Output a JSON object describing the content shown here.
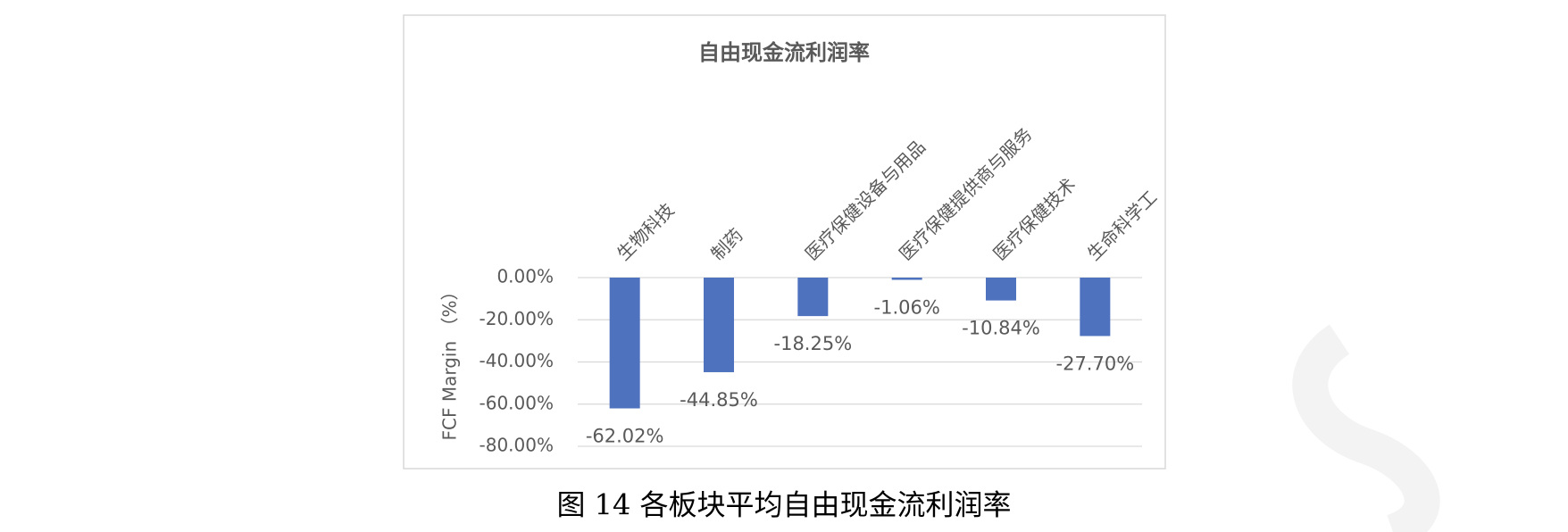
{
  "chart_data": {
    "type": "bar",
    "title": "自由现金流利润率",
    "y_label": "FCF Margin （%）",
    "categories": [
      "生物科技",
      "制药",
      "医疗保健设备与用品",
      "医疗保健提供商与服务",
      "医疗保健技术",
      "生命科学工"
    ],
    "values": [
      -62.02,
      -44.85,
      -18.25,
      -1.06,
      -10.84,
      -27.7
    ],
    "value_labels": [
      "-62.02%",
      "-44.85%",
      "-18.25%",
      "-1.06%",
      "-10.84%",
      "-27.70%"
    ],
    "color": "#4e72be",
    "ylim": [
      -80,
      0
    ],
    "yticks": [
      {
        "value": 0,
        "label": "0.00%"
      },
      {
        "value": -20,
        "label": "-20.00%"
      },
      {
        "value": -40,
        "label": "-40.00%"
      },
      {
        "value": -60,
        "label": "-60.00%"
      },
      {
        "value": -80,
        "label": "-80.00%"
      }
    ],
    "grid": true
  },
  "caption": "图 14  各板块平均自由现金流利润率"
}
